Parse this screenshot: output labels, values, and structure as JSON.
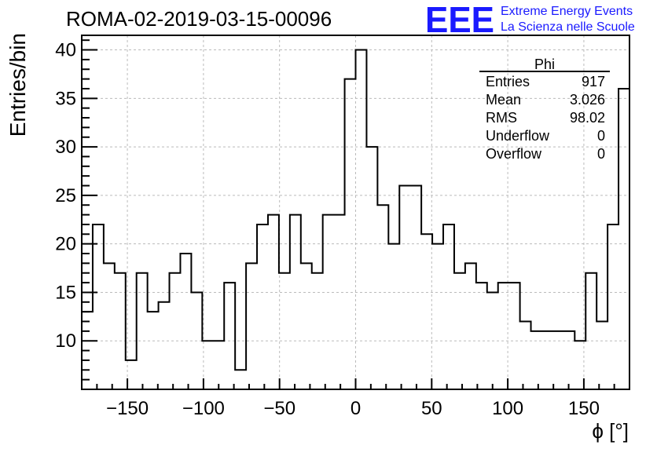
{
  "header": {
    "run_title": "ROMA-02-2019-03-15-00096",
    "logo_text": "EEE",
    "logo_line1": "Extreme Energy Events",
    "logo_line2": "La Scienza nelle Scuole",
    "logo_color": "#1a1aff"
  },
  "stats_box": {
    "title": "Phi",
    "rows": [
      {
        "label": "Entries",
        "value": "917"
      },
      {
        "label": "Mean",
        "value": "3.026"
      },
      {
        "label": "RMS",
        "value": "98.02"
      },
      {
        "label": "Underflow",
        "value": "0"
      },
      {
        "label": "Overflow",
        "value": "0"
      }
    ]
  },
  "chart_data": {
    "type": "bar",
    "style": "step-histogram",
    "xlabel": "ϕ [°]",
    "ylabel": "Entries/bin",
    "xlim": [
      -180,
      180
    ],
    "ylim": [
      5,
      41.5
    ],
    "bin_width": 7.2,
    "x_ticks": [
      -150,
      -100,
      -50,
      0,
      50,
      100,
      150
    ],
    "x_tick_labels": [
      "−150",
      "−100",
      "−50",
      "0",
      "50",
      "100",
      "150"
    ],
    "y_ticks": [
      10,
      15,
      20,
      25,
      30,
      35,
      40
    ],
    "y_tick_labels": [
      "10",
      "15",
      "20",
      "25",
      "30",
      "35",
      "40"
    ],
    "grid": true,
    "line_color": "#000000",
    "values": [
      13,
      22,
      18,
      17,
      8,
      17,
      13,
      14,
      17,
      19,
      15,
      10,
      10,
      16,
      7,
      18,
      22,
      23,
      17,
      23,
      18,
      17,
      23,
      23,
      37,
      40,
      30,
      24,
      20,
      26,
      26,
      21,
      20,
      22,
      17,
      18,
      16,
      15,
      16,
      16,
      12,
      11,
      11,
      11,
      11,
      10,
      17,
      12,
      22,
      36
    ]
  }
}
